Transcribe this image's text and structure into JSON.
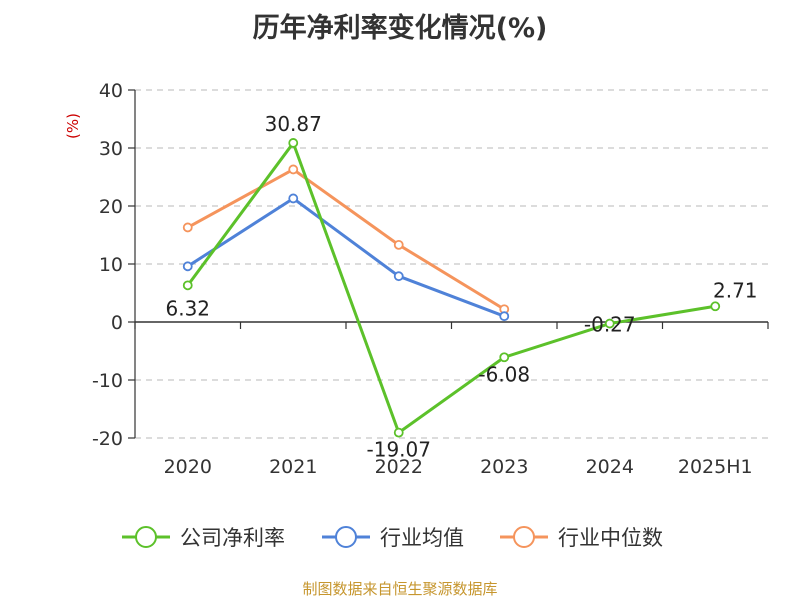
{
  "chart_data": {
    "type": "line",
    "title": "历年净利率变化情况(%)",
    "ylabel": "(%)",
    "xlabel": "",
    "categories": [
      "2020",
      "2021",
      "2022",
      "2023",
      "2024",
      "2025H1"
    ],
    "ylim": [
      -20,
      40
    ],
    "yticks": [
      "40",
      "30",
      "20",
      "10",
      "0",
      "-10",
      "-20"
    ],
    "grid": true,
    "legend_position": "bottom",
    "series": [
      {
        "name": "公司净利率",
        "color": "#5cc12a",
        "values": [
          6.32,
          30.87,
          -19.07,
          -6.08,
          -0.27,
          2.71
        ],
        "labels": [
          "6.32",
          "30.87",
          "-19.07",
          "-6.08",
          "-0.27",
          "2.71"
        ]
      },
      {
        "name": "行业均值",
        "color": "#4f82d8",
        "values": [
          9.6,
          21.3,
          7.9,
          1.0,
          null,
          null
        ]
      },
      {
        "name": "行业中位数",
        "color": "#f5945c",
        "values": [
          16.3,
          26.3,
          13.3,
          2.2,
          null,
          null
        ]
      }
    ]
  },
  "source_note": "制图数据来自恒生聚源数据库"
}
